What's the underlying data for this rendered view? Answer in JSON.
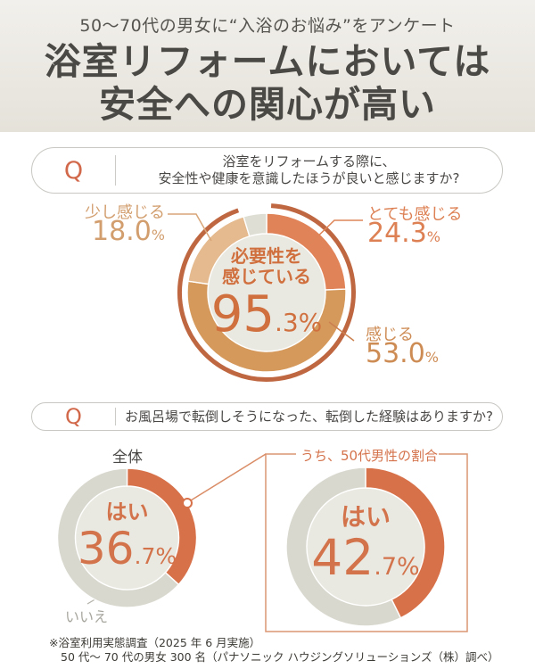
{
  "header": {
    "subtitle": "50〜70代の男女に“入浴のお悩み”をアンケート",
    "title_line1": "浴室リフォームにおいては",
    "title_line2": "安全への関心が高い"
  },
  "colors": {
    "accent_orange": "#d2684a",
    "outer_ring": "#bf6740",
    "hole_bg": "#eae9e1",
    "center_text": "#d0703f",
    "q2_orange": "#d7714a",
    "q2_gray": "#d9d8cf",
    "box_border": "#db9672",
    "connector": "#d98c66",
    "header_bg_top": "#f2f0ec",
    "header_bg_bottom": "#e5e2da"
  },
  "q1": {
    "q_mark": "Q",
    "question_line1": "浴室をリフォームする際に、",
    "question_line2": "安全性や健康を意識したほうが良いと感じますか?",
    "center": {
      "label_line1": "必要性を",
      "label_line2": "感じている",
      "value_big": "95",
      "value_small": ".3%"
    },
    "labels": {
      "totemo": {
        "name": "とても感じる",
        "value": "24.3",
        "unit": "%"
      },
      "kanjiru": {
        "name": "感じる",
        "value": "53.0",
        "unit": "%"
      },
      "sukoshi": {
        "name": "少し感じる",
        "value": "18.0",
        "unit": "%"
      }
    }
  },
  "q2": {
    "q_mark": "Q",
    "question": "お風呂場で転倒しそうになった、転倒した経験はありますか?",
    "left": {
      "group_label": "全体",
      "yes_label": "はい",
      "value_big": "36",
      "value_small": ".7%",
      "no_label": "いいえ"
    },
    "right": {
      "box_title": "うち、50代男性の割合",
      "yes_label": "はい",
      "value_big": "42",
      "value_small": ".7%"
    }
  },
  "footer": {
    "line1": "※浴室利用実態調査（2025 年 6 月実施）",
    "line2": "50 代〜 70 代の男女 300 名（パナソニック ハウジングソリューションズ（株）調べ）"
  },
  "chart_data": [
    {
      "type": "pie",
      "title": "浴室をリフォームする際に、安全性や健康を意識したほうが良いと感じますか?",
      "center_label": "必要性を感じている",
      "center_value": "95.3",
      "unit": "%",
      "legend_position": "around",
      "slices": [
        {
          "label": "とても感じる",
          "value": "24.3",
          "color": "#e08358"
        },
        {
          "label": "感じる",
          "value": "53.0",
          "color": "#d5995c"
        },
        {
          "label": "少し感じる",
          "value": "18.0",
          "color": "#e4ba8e"
        },
        {
          "label": "",
          "value": "4.7",
          "color": "#dfded4"
        }
      ]
    },
    {
      "type": "pie",
      "title": "全体",
      "slices": [
        {
          "label": "はい",
          "value": "36.7",
          "color": "#d7714a"
        },
        {
          "label": "いいえ",
          "value": "63.3",
          "color": "#d9d8cf"
        }
      ]
    },
    {
      "type": "pie",
      "title": "うち、50代男性の割合",
      "slices": [
        {
          "label": "はい",
          "value": "42.7",
          "color": "#d7714a"
        },
        {
          "label": "",
          "value": "57.3",
          "color": "#d9d8cf"
        }
      ]
    }
  ]
}
